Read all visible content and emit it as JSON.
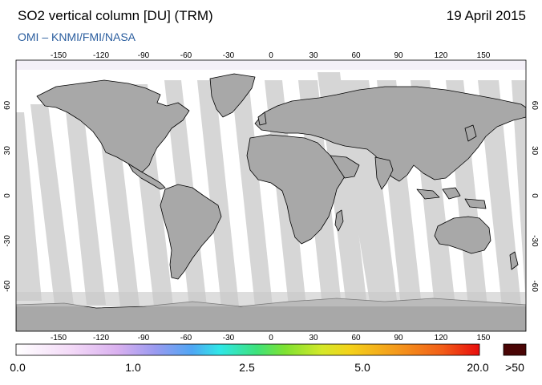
{
  "header": {
    "title": "SO2 vertical column [DU] (TRM)",
    "date": "19 April 2015",
    "subtitle": "OMI  –  KNMI/FMI/NASA"
  },
  "map": {
    "projection": "equirectangular",
    "lon_ticks": [
      "-150",
      "-120",
      "-90",
      "-60",
      "-30",
      "0",
      "30",
      "60",
      "90",
      "120",
      "150"
    ],
    "lat_ticks": [
      "60",
      "30",
      "0",
      "-30",
      "-60"
    ],
    "colors": {
      "ocean": "#ffffff",
      "land": "#a8a8a8",
      "swath": "#d6d6d6",
      "coast": "#000000"
    }
  },
  "colorbar": {
    "labels": [
      "0.0",
      "1.0",
      "2.5",
      "5.0",
      "20.0",
      ">50"
    ],
    "overflow_color": "#4a0505"
  }
}
